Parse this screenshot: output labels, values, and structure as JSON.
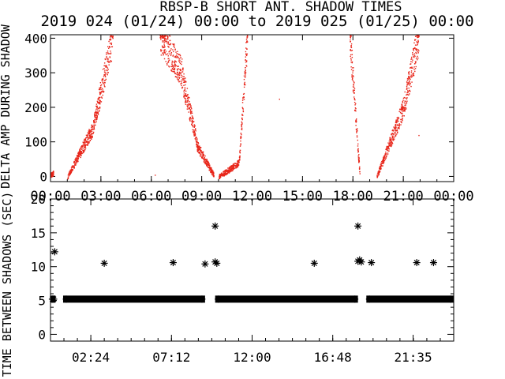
{
  "title_line1": "RBSP-B SHORT ANT. SHADOW TIMES",
  "title_line2": "2019 024 (01/24) 00:00 to 2019 025 (01/25) 00:00",
  "chart_data": [
    {
      "type": "scatter",
      "ylabel": "DELTA AMP DURING SHADOW",
      "ylim": [
        -15,
        410
      ],
      "xlim_hours": [
        0,
        24
      ],
      "x_tick_labels": [
        "00:00",
        "03:00",
        "06:00",
        "09:00",
        "12:00",
        "15:00",
        "18:00",
        "21:00",
        "00:00"
      ],
      "y_tick_labels": [
        "0",
        "100",
        "200",
        "300",
        "400"
      ],
      "y_ticks": [
        0,
        100,
        200,
        300,
        400
      ],
      "color": "#e8261a",
      "bursts": [
        {
          "t0": 0.0,
          "t1": 0.15,
          "v0": 5,
          "v1": 10
        },
        {
          "t0": 1.0,
          "t1": 2.5,
          "v0": 0,
          "v1": 140
        },
        {
          "t0": 2.5,
          "t1": 3.7,
          "v0": 140,
          "v1": 410
        },
        {
          "t0": 6.5,
          "t1": 7.8,
          "v0": 410,
          "v1": 300
        },
        {
          "t0": 7.8,
          "t1": 8.7,
          "v0": 290,
          "v1": 100
        },
        {
          "t0": 8.7,
          "t1": 9.7,
          "v0": 90,
          "v1": 5
        },
        {
          "t0": 10.0,
          "t1": 11.2,
          "v0": 0,
          "v1": 40
        },
        {
          "t0": 11.2,
          "t1": 11.7,
          "v0": 40,
          "v1": 410
        },
        {
          "t0": 17.8,
          "t1": 18.4,
          "v0": 410,
          "v1": 0
        },
        {
          "t0": 19.4,
          "t1": 21.0,
          "v0": 0,
          "v1": 200
        },
        {
          "t0": 21.0,
          "t1": 21.9,
          "v0": 200,
          "v1": 410
        }
      ],
      "isolated_points": [
        [
          13.6,
          225
        ],
        [
          21.9,
          120
        ],
        [
          6.2,
          5
        ]
      ]
    },
    {
      "type": "scatter",
      "ylabel": "TIME BETWEEN SHADOWS (SEC)",
      "ylim": [
        -1,
        20
      ],
      "xlim_hours": [
        0,
        24
      ],
      "x_tick_labels": [
        "02:24",
        "07:12",
        "12:00",
        "16:48",
        "21:35"
      ],
      "x_ticks_hours": [
        2.4,
        7.2,
        12.0,
        16.8,
        21.583
      ],
      "y_tick_labels": [
        "0",
        "5",
        "10",
        "15",
        "20"
      ],
      "y_ticks": [
        0,
        5,
        10,
        15,
        20
      ],
      "color": "#000000",
      "baseline": {
        "value": 5.2,
        "segments": [
          [
            0,
            0.3
          ],
          [
            0.75,
            9.2
          ],
          [
            9.8,
            18.3
          ],
          [
            18.8,
            24
          ]
        ]
      },
      "points": [
        [
          0.25,
          12.2
        ],
        [
          3.2,
          10.5
        ],
        [
          7.3,
          10.6
        ],
        [
          9.2,
          10.4
        ],
        [
          9.8,
          16.0
        ],
        [
          9.8,
          10.7
        ],
        [
          9.9,
          10.5
        ],
        [
          15.7,
          10.5
        ],
        [
          18.3,
          16.0
        ],
        [
          18.3,
          10.8
        ],
        [
          18.4,
          11.0
        ],
        [
          18.5,
          10.7
        ],
        [
          19.1,
          10.6
        ],
        [
          21.8,
          10.6
        ],
        [
          22.8,
          10.6
        ]
      ]
    }
  ]
}
